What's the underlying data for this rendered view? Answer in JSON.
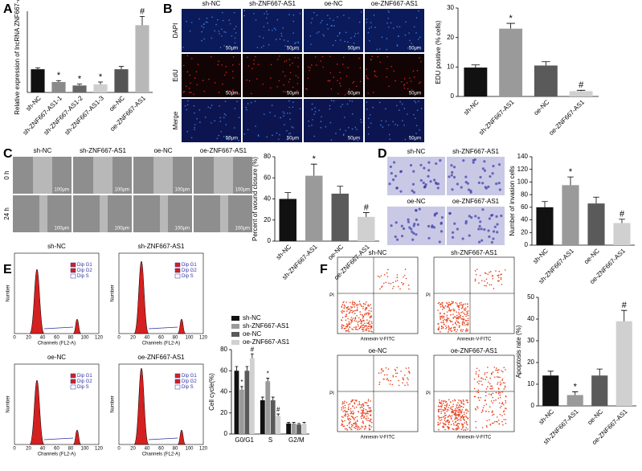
{
  "panel_labels": [
    "A",
    "B",
    "C",
    "D",
    "E",
    "F"
  ],
  "image_panels": {
    "B": {
      "columns": [
        "sh-NC",
        "sh-ZNF667-AS1",
        "oe-NC",
        "oe-ZNF667-AS1"
      ],
      "rows": [
        "DAPI",
        "EdU",
        "Merge"
      ],
      "scale_bar": "50μm"
    },
    "C": {
      "columns": [
        "sh-NC",
        "sh-ZNF667-AS1",
        "oe-NC",
        "oe-ZNF667-AS1"
      ],
      "rows": [
        "0 h",
        "24 h"
      ],
      "scale_bar": "100μm"
    },
    "D": {
      "panels": [
        "sh-NC",
        "sh-ZNF667-AS1",
        "oe-NC",
        "oe-ZNF667-AS1"
      ]
    },
    "E": {
      "panels": [
        "sh-NC",
        "sh-ZNF667-AS1",
        "oe-NC",
        "oe-ZNF667-AS1"
      ],
      "x_label": "Channels (FL2-A)",
      "y_label": "Number",
      "legend": [
        "Dip G1",
        "Dip G2",
        "Dip S"
      ],
      "x_tick_labels": [
        "0",
        "20",
        "40",
        "60",
        "80",
        "100",
        "120"
      ]
    },
    "F": {
      "panels": [
        "sh-NC",
        "sh-ZNF667-AS1",
        "oe-NC",
        "oe-ZNF667-AS1"
      ],
      "x_label": "Annexin-V-FITC",
      "y_label": "PI"
    }
  },
  "chart_data": [
    {
      "type": "bar",
      "y_label": "Relative expression of lncRNA ZNF667-AS1",
      "categories": [
        "sh-NC",
        "sh-ZNF667-AS1-1",
        "sh-ZNF667-AS1-2",
        "sh-ZNF667-AS1-3",
        "oe-NC",
        "oe-ZNF667-AS1"
      ],
      "values": [
        1.0,
        0.45,
        0.3,
        0.35,
        1.0,
        2.9
      ],
      "errors": [
        0.06,
        0.06,
        0.06,
        0.1,
        0.12,
        0.38
      ],
      "annotations": [
        null,
        "*",
        "*",
        "*",
        null,
        "#"
      ],
      "colors": [
        "#111111",
        "#8a8a8a",
        "#666666",
        "#cfcfcf",
        "#555555",
        "#b8b8b8"
      ],
      "ylim": [
        0,
        3.5
      ]
    },
    {
      "type": "bar",
      "y_label": "EDU positive (% cells)",
      "categories": [
        "sh-NC",
        "sh-ZNF667-AS1",
        "oe-NC",
        "oe-ZNF667-AS1"
      ],
      "values": [
        9.8,
        23,
        10.5,
        1.8
      ],
      "errors": [
        0.9,
        1.8,
        1.3,
        0.3
      ],
      "annotations": [
        null,
        "*",
        null,
        "#"
      ],
      "colors": [
        "#111111",
        "#9a9a9a",
        "#5a5a5a",
        "#d0d0d0"
      ],
      "ylim": [
        0,
        30
      ],
      "yticks": [
        0,
        10,
        20,
        30
      ]
    },
    {
      "type": "bar",
      "y_label": "Percent of wound closure (%)",
      "categories": [
        "sh-NC",
        "sh-ZNF667-AS1",
        "oe-NC",
        "oe-ZNF667-AS1"
      ],
      "values": [
        40,
        62,
        45,
        23
      ],
      "errors": [
        6,
        11,
        7,
        4
      ],
      "annotations": [
        null,
        "*",
        null,
        "#"
      ],
      "colors": [
        "#111111",
        "#9a9a9a",
        "#5a5a5a",
        "#d0d0d0"
      ],
      "ylim": [
        0,
        80
      ],
      "yticks": [
        0,
        20,
        40,
        60,
        80
      ]
    },
    {
      "type": "bar",
      "y_label": "Number of invasion cells",
      "categories": [
        "sh-NC",
        "sh-ZNF667-AS1",
        "oe-NC",
        "oe-ZNF667-AS1"
      ],
      "values": [
        60,
        95,
        66,
        35
      ],
      "errors": [
        9,
        13,
        10,
        6
      ],
      "annotations": [
        null,
        "*",
        null,
        "#"
      ],
      "colors": [
        "#111111",
        "#9a9a9a",
        "#5a5a5a",
        "#d0d0d0"
      ],
      "ylim": [
        0,
        140
      ],
      "yticks": [
        0,
        20,
        40,
        60,
        80,
        100,
        120,
        140
      ]
    },
    {
      "type": "grouped_bar",
      "y_label": "Cell cycle(%)",
      "categories": [
        "G0/G1",
        "S",
        "G2/M"
      ],
      "series": [
        {
          "name": "sh-NC",
          "color": "#111111",
          "values": [
            60,
            32,
            10
          ],
          "errors": [
            4,
            3,
            1
          ],
          "annotations": [
            null,
            null,
            null
          ]
        },
        {
          "name": "sh-ZNF667-AS1",
          "color": "#9a9a9a",
          "values": [
            42,
            50,
            10
          ],
          "errors": [
            3,
            3,
            1
          ],
          "annotations": [
            "*",
            "*",
            null
          ]
        },
        {
          "name": "oe-NC",
          "color": "#5a5a5a",
          "values": [
            60,
            32,
            9
          ],
          "errors": [
            4,
            3,
            1
          ],
          "annotations": [
            null,
            null,
            null
          ]
        },
        {
          "name": "oe-ZNF667-AS1",
          "color": "#d0d0d0",
          "values": [
            72,
            17,
            10
          ],
          "errors": [
            4,
            2,
            1
          ],
          "annotations": [
            "#",
            "#",
            null
          ]
        }
      ],
      "ylim": [
        0,
        80
      ],
      "yticks": [
        0,
        20,
        40,
        60,
        80
      ]
    },
    {
      "type": "bar",
      "y_label": "Apoptosis rate (%)",
      "categories": [
        "sh-NC",
        "sh-ZNF667-AS1",
        "oe-NC",
        "oe-ZNF667-AS1"
      ],
      "values": [
        14,
        5,
        14,
        39
      ],
      "errors": [
        2,
        1.5,
        3,
        5
      ],
      "annotations": [
        null,
        "*",
        null,
        "#"
      ],
      "colors": [
        "#111111",
        "#9a9a9a",
        "#5a5a5a",
        "#d0d0d0"
      ],
      "ylim": [
        0,
        50
      ],
      "yticks": [
        0,
        10,
        20,
        30,
        40,
        50
      ]
    }
  ]
}
